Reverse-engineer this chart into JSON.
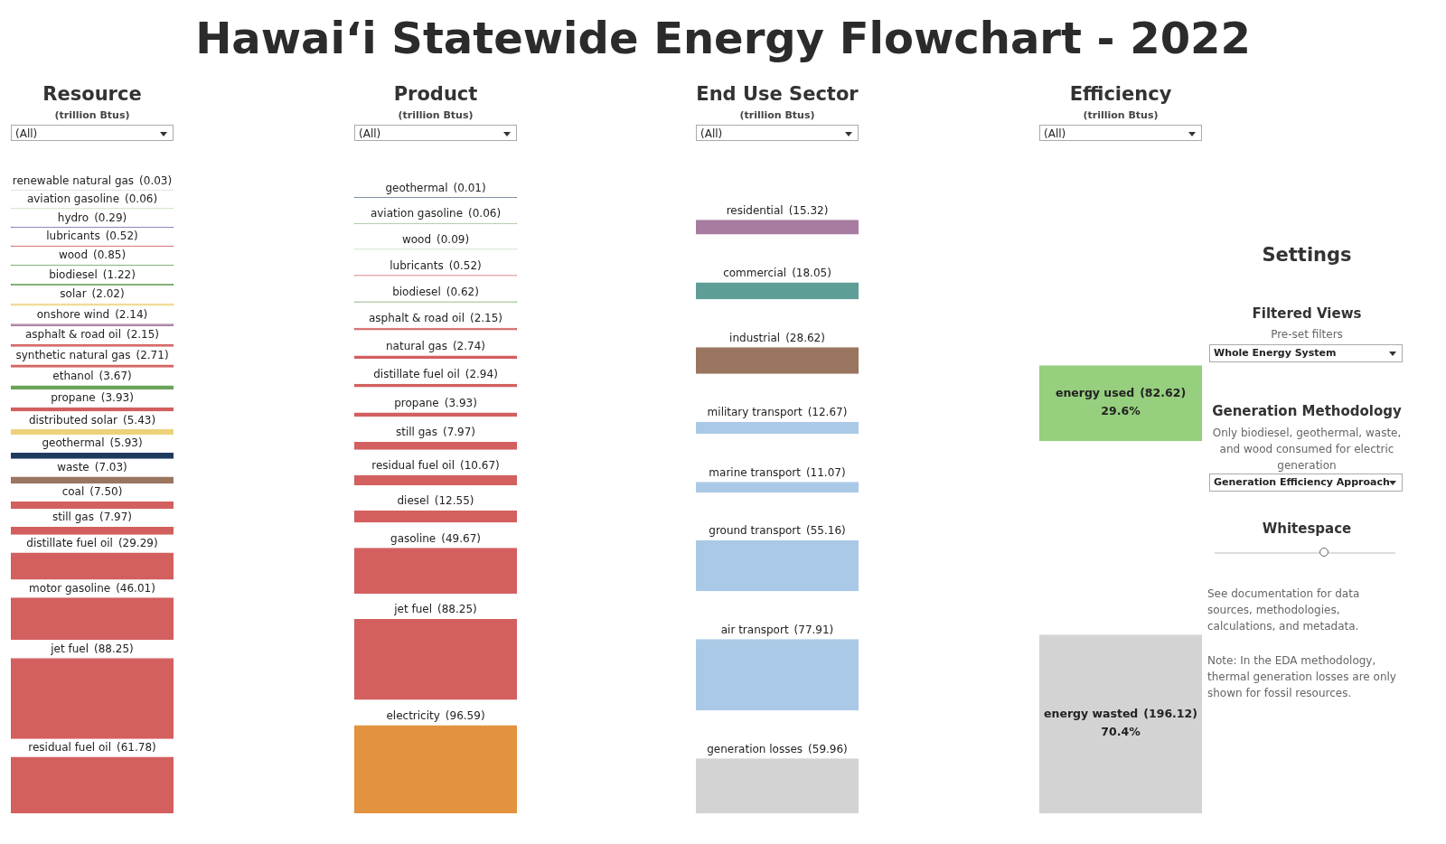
{
  "chart_data": [
    {
      "type": "other",
      "title": "Hawaiʻi Statewide Energy Flowchart - 2022"
    },
    {
      "type": "other",
      "title": "Resource",
      "subtitle": "(trillion Btus)",
      "annotations": [
        "(All)"
      ],
      "categories": [
        "renewable natural gas",
        "aviation gasoline",
        "hydro",
        "lubricants",
        "wood",
        "biodiesel",
        "solar",
        "onshore wind",
        "asphalt & road oil",
        "synthetic natural gas",
        "ethanol",
        "propane",
        "distributed solar",
        "geothermal",
        "waste",
        "coal",
        "still gas",
        "distillate fuel oil",
        "motor gasoline",
        "jet fuel",
        "residual fuel oil"
      ],
      "values": [
        0.03,
        0.06,
        0.29,
        0.52,
        0.85,
        1.22,
        2.02,
        2.14,
        2.15,
        2.71,
        3.67,
        3.93,
        5.43,
        5.93,
        7.03,
        7.5,
        7.97,
        29.29,
        46.01,
        88.25,
        61.78
      ],
      "value_labels": [
        "(0.03)",
        "(0.06)",
        "(0.29)",
        "(0.52)",
        "(0.85)",
        "(1.22)",
        "(2.02)",
        "(2.14)",
        "(2.15)",
        "(2.71)",
        "(3.67)",
        "(3.93)",
        "(5.43)",
        "(5.93)",
        "(7.03)",
        "(7.50)",
        "(7.97)",
        "(29.29)",
        "(46.01)",
        "(88.25)",
        "(61.78)"
      ],
      "colors": [
        "#c8c8c8",
        "#6aa35a",
        "#6b6fa8",
        "#d35f5f",
        "#6aa35a",
        "#6aa35a",
        "#ecd27a",
        "#a77ca0",
        "#d35f5f",
        "#d35f5f",
        "#6aa35a",
        "#d35f5f",
        "#ecd27a",
        "#1e3a5f",
        "#9a7661",
        "#d35f5f",
        "#d35f5f",
        "#d35f5f",
        "#d35f5f",
        "#d35f5f",
        "#d35f5f"
      ]
    },
    {
      "type": "other",
      "title": "Product",
      "subtitle": "(trillion Btus)",
      "annotations": [
        "(All)"
      ],
      "categories": [
        "geothermal",
        "aviation gasoline",
        "wood",
        "lubricants",
        "biodiesel",
        "asphalt & road oil",
        "natural gas",
        "distillate fuel oil",
        "propane",
        "still gas",
        "residual fuel oil",
        "diesel",
        "gasoline",
        "jet fuel",
        "electricity"
      ],
      "values": [
        0.01,
        0.06,
        0.09,
        0.52,
        0.62,
        2.15,
        2.74,
        2.94,
        3.93,
        7.97,
        10.67,
        12.55,
        49.67,
        88.25,
        96.59
      ],
      "value_labels": [
        "(0.01)",
        "(0.06)",
        "(0.09)",
        "(0.52)",
        "(0.62)",
        "(2.15)",
        "(2.74)",
        "(2.94)",
        "(3.93)",
        "(7.97)",
        "(10.67)",
        "(12.55)",
        "(49.67)",
        "(88.25)",
        "(96.59)"
      ],
      "colors": [
        "#1e3a5f",
        "#6aa35a",
        "#6aa35a",
        "#d35f5f",
        "#6aa35a",
        "#d35f5f",
        "#d35f5f",
        "#d35f5f",
        "#d35f5f",
        "#d35f5f",
        "#d35f5f",
        "#d35f5f",
        "#d35f5f",
        "#d35f5f",
        "#e3923f"
      ]
    },
    {
      "type": "other",
      "title": "End Use Sector",
      "subtitle": "(trillion Btus)",
      "annotations": [
        "(All)"
      ],
      "categories": [
        "residential",
        "commercial",
        "industrial",
        "military transport",
        "marine transport",
        "ground transport",
        "air transport",
        "generation losses"
      ],
      "values": [
        15.32,
        18.05,
        28.62,
        12.67,
        11.07,
        55.16,
        77.91,
        59.96
      ],
      "value_labels": [
        "(15.32)",
        "(18.05)",
        "(28.62)",
        "(12.67)",
        "(11.07)",
        "(55.16)",
        "(77.91)",
        "(59.96)"
      ],
      "colors": [
        "#a77ca0",
        "#5f9e97",
        "#9a7661",
        "#a9c9e6",
        "#a9c9e6",
        "#a9c9e6",
        "#a9c9e6",
        "#d3d3d3"
      ]
    },
    {
      "type": "other",
      "title": "Efficiency",
      "subtitle": "(trillion Btus)",
      "annotations": [
        "(All)",
        "29.6%",
        "70.4%"
      ],
      "categories": [
        "energy used",
        "energy wasted"
      ],
      "values": [
        82.62,
        196.12
      ],
      "value_labels": [
        "(82.62)",
        "(196.12)"
      ],
      "colors": [
        "#96cf7e",
        "#d3d3d3"
      ]
    },
    {
      "type": "other",
      "title": "Settings",
      "annotations": [
        "Filtered Views",
        "Pre-set filters",
        "Whole Energy System",
        "Generation Methodology",
        "Only biodiesel, geothermal, waste, and wood consumed for electric generation",
        "Generation Efficiency Approach",
        "Whitespace",
        "See documentation for data sources, methodologies, calculations, and metadata.",
        "Note: In the EDA methodology, thermal generation losses are only shown for fossil resources."
      ]
    }
  ]
}
